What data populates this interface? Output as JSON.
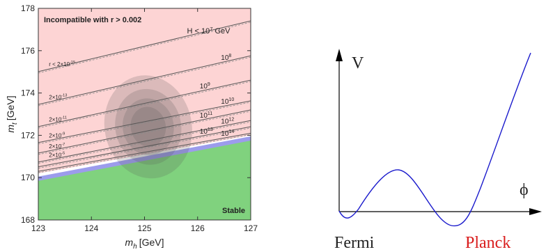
{
  "chart_data": {
    "type": "region",
    "xlabel": {
      "symbol": "m",
      "subscript": "h",
      "unit": "[GeV]"
    },
    "ylabel": {
      "symbol": "m",
      "subscript": "t",
      "unit": "[GeV]"
    },
    "xlim": [
      123,
      127
    ],
    "ylim": [
      168,
      178
    ],
    "xticks": [
      123,
      124,
      125,
      126,
      127
    ],
    "yticks": [
      168,
      170,
      172,
      174,
      176,
      178
    ],
    "top_annotation": "Incompatible with r > 0.002",
    "bottom_annotation": "Stable",
    "colors": {
      "incompatible": "#fdd4d4",
      "metastable": "#9c9cec",
      "stable": "#80d27e",
      "ellipse": "#555555"
    },
    "unstable_boundary": {
      "x": [
        123,
        127
      ],
      "y": [
        170.2,
        172.0
      ]
    },
    "metastable_boundary": {
      "x": [
        123,
        127
      ],
      "y": [
        170.05,
        171.95
      ]
    },
    "stable_boundary": {
      "x": [
        123,
        127
      ],
      "y": [
        169.85,
        171.75
      ]
    },
    "lines": [
      {
        "x": [
          123,
          127
        ],
        "y": [
          175.01,
          177.41
        ],
        "left_label": {
          "text": "r < 2×10",
          "exp": "-15"
        },
        "right_label": {
          "text": "H < 10",
          "exp": "7",
          "unit": "GeV"
        }
      },
      {
        "x": [
          123,
          127
        ],
        "y": [
          173.46,
          175.76
        ],
        "left_label": {
          "text": "2×10",
          "exp": "-13"
        },
        "right_label": {
          "text": "10",
          "exp": "8"
        }
      },
      {
        "x": [
          123,
          127
        ],
        "y": [
          172.41,
          174.61
        ],
        "left_label": {
          "text": "2×10",
          "exp": "-11"
        },
        "right_label": {
          "text": "10",
          "exp": "9"
        }
      },
      {
        "x": [
          123,
          127
        ],
        "y": [
          171.66,
          173.63
        ],
        "left_label": {
          "text": "2×10",
          "exp": "-9"
        },
        "right_label": {
          "text": "10",
          "exp": "10"
        }
      },
      {
        "x": [
          123,
          127
        ],
        "y": [
          171.16,
          173.2
        ],
        "left_label": {
          "text": "2×10",
          "exp": "-7"
        },
        "right_label": {
          "text": "10",
          "exp": "11"
        }
      },
      {
        "x": [
          123,
          127
        ],
        "y": [
          170.74,
          172.7
        ],
        "left_label": {
          "text": "2×10",
          "exp": "-5"
        },
        "right_label": {
          "text": "10",
          "exp": "12"
        }
      },
      {
        "x": [
          123,
          127
        ],
        "y": [
          170.51,
          172.41
        ],
        "right_label": {
          "text": "10",
          "exp": "13"
        }
      },
      {
        "x": [
          123,
          127
        ],
        "y": [
          170.3,
          172.1
        ],
        "right_label": {
          "text": "10",
          "exp": "14"
        }
      }
    ],
    "ellipses": [
      {
        "cx": 125.07,
        "cy": 172.4,
        "rx": 0.82,
        "ry": 2.45
      },
      {
        "cx": 125.07,
        "cy": 172.4,
        "rx": 0.62,
        "ry": 1.8
      },
      {
        "cx": 125.07,
        "cy": 172.4,
        "rx": 0.48,
        "ry": 1.35
      },
      {
        "cx": 125.07,
        "cy": 172.4,
        "rx": 0.33,
        "ry": 0.95
      }
    ]
  },
  "potential_diagram": {
    "y_axis_label": "V",
    "x_axis_label": "ϕ",
    "left_label": "Fermi",
    "right_label": "Planck"
  }
}
